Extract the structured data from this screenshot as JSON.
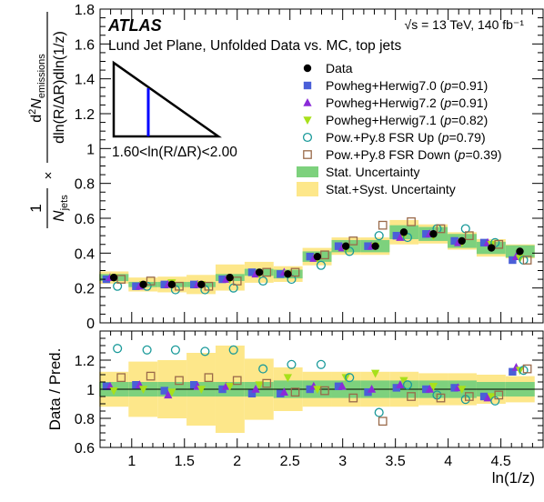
{
  "chart_data": {
    "type": "scatter",
    "experiment": "ATLAS",
    "energy_label": "√s = 13 TeV, 140 fb⁻¹",
    "title": "Lund Jet Plane, Unfolded Data vs. MC, top jets",
    "region_label": "1.60<ln(R/ΔR)<2.00",
    "xlabel": "ln(1/z)",
    "ylabel_top": "1/N_jets × d²N_emissions / dln(R/ΔR)dln(1/z)",
    "ylabel_top_parts": {
      "frac1_num": "1",
      "frac1_den_main": "N",
      "frac1_den_sub": "jets",
      "times": "×",
      "frac2_num_main": "d",
      "frac2_num_sup": "2",
      "frac2_num_N": "N",
      "frac2_num_sub": "emissions",
      "frac2_den": "dln(R/ΔR)dln(1/z)"
    },
    "ylabel_bottom": "Data / Pred.",
    "xlim": [
      0.7,
      4.9
    ],
    "ylim_top": [
      0,
      1.8
    ],
    "ylim_bottom": [
      0.6,
      1.4
    ],
    "xticks": [
      1,
      1.5,
      2,
      2.5,
      3,
      3.5,
      4,
      4.5
    ],
    "xtick_labels": [
      "1",
      "1.5",
      "2",
      "2.5",
      "3",
      "3.5",
      "4",
      "4.5"
    ],
    "yticks_top": [
      0,
      0.2,
      0.4,
      0.6,
      0.8,
      1,
      1.2,
      1.4,
      1.6,
      1.8
    ],
    "ytick_labels_top": [
      "0",
      "0.2",
      "0.4",
      "0.6",
      "0.8",
      "1",
      "1.2",
      "1.4",
      "1.6",
      "1.8"
    ],
    "yticks_bottom": [
      0.6,
      0.8,
      1,
      1.2
    ],
    "ytick_labels_bottom": [
      "0.6",
      "0.8",
      "1",
      "1.2"
    ],
    "bins": [
      {
        "lo": 0.693,
        "hi": 0.97
      },
      {
        "lo": 0.97,
        "hi": 1.245
      },
      {
        "lo": 1.245,
        "hi": 1.52
      },
      {
        "lo": 1.52,
        "hi": 1.795
      },
      {
        "lo": 1.795,
        "hi": 2.07
      },
      {
        "lo": 2.07,
        "hi": 2.345
      },
      {
        "lo": 2.345,
        "hi": 2.62
      },
      {
        "lo": 2.62,
        "hi": 2.895
      },
      {
        "lo": 2.895,
        "hi": 3.17
      },
      {
        "lo": 3.17,
        "hi": 3.445
      },
      {
        "lo": 3.445,
        "hi": 3.72
      },
      {
        "lo": 3.72,
        "hi": 3.995
      },
      {
        "lo": 3.995,
        "hi": 4.27
      },
      {
        "lo": 4.27,
        "hi": 4.545
      },
      {
        "lo": 4.545,
        "hi": 4.82
      }
    ],
    "data": {
      "x": [
        0.83,
        1.11,
        1.38,
        1.66,
        1.93,
        2.21,
        2.48,
        2.76,
        3.03,
        3.31,
        3.58,
        3.86,
        4.13,
        4.41,
        4.68
      ],
      "y": [
        0.26,
        0.22,
        0.22,
        0.22,
        0.26,
        0.29,
        0.28,
        0.38,
        0.44,
        0.44,
        0.52,
        0.51,
        0.47,
        0.43,
        0.41
      ],
      "stat_unc": [
        0.02,
        0.015,
        0.015,
        0.015,
        0.02,
        0.02,
        0.025,
        0.03,
        0.035,
        0.035,
        0.04,
        0.04,
        0.04,
        0.035,
        0.035
      ],
      "total_unc": [
        0.035,
        0.04,
        0.045,
        0.055,
        0.075,
        0.06,
        0.045,
        0.05,
        0.05,
        0.05,
        0.07,
        0.055,
        0.05,
        0.05,
        0.04
      ]
    },
    "ratio_bands": {
      "stat_unc": [
        0.05,
        0.05,
        0.05,
        0.05,
        0.05,
        0.05,
        0.06,
        0.06,
        0.06,
        0.06,
        0.06,
        0.06,
        0.06,
        0.05,
        0.05
      ],
      "total_unc": [
        0.12,
        0.19,
        0.2,
        0.25,
        0.3,
        0.21,
        0.15,
        0.12,
        0.12,
        0.12,
        0.12,
        0.11,
        0.11,
        0.1,
        0.09
      ]
    },
    "series": [
      {
        "name": "Powheg+Herwig7.0",
        "pval": "0.91",
        "color": "#4a5fd8",
        "marker": "square",
        "dx": -0.07,
        "values": [
          0.25,
          0.21,
          0.22,
          0.22,
          0.25,
          0.29,
          0.28,
          0.38,
          0.44,
          0.44,
          0.5,
          0.51,
          0.47,
          0.46,
          0.36
        ],
        "ratio": [
          1.02,
          1.03,
          0.99,
          1.03,
          1.0,
          0.97,
          0.97,
          1.0,
          1.02,
          0.98,
          1.01,
          1.0,
          1.01,
          0.95,
          1.12
        ]
      },
      {
        "name": "Powheg+Herwig7.2",
        "pval": "0.91",
        "color": "#8a2bd8",
        "marker": "triangle-up",
        "dx": -0.035,
        "values": [
          0.26,
          0.21,
          0.22,
          0.22,
          0.25,
          0.28,
          0.29,
          0.37,
          0.43,
          0.44,
          0.49,
          0.51,
          0.46,
          0.46,
          0.38
        ],
        "ratio": [
          1.02,
          1.03,
          0.96,
          1.02,
          1.02,
          1.0,
          0.98,
          1.02,
          1.02,
          1.0,
          1.03,
          1.0,
          1.01,
          0.94,
          1.15
        ]
      },
      {
        "name": "Powheg+Herwig7.1",
        "pval": "0.82",
        "color": "#a8e01a",
        "marker": "triangle-down",
        "dx": 0.0,
        "values": [
          0.26,
          0.22,
          0.23,
          0.22,
          0.25,
          0.28,
          0.28,
          0.37,
          0.42,
          0.44,
          0.5,
          0.5,
          0.46,
          0.45,
          0.37
        ],
        "ratio": [
          0.99,
          1.0,
          0.98,
          1.0,
          1.02,
          1.03,
          1.08,
          1.0,
          1.08,
          1.11,
          1.06,
          1.02,
          1.0,
          0.95,
          1.13
        ]
      },
      {
        "name": "Pow.+Py.8 FSR Up",
        "pval": "0.79",
        "color": "#1a9a9a",
        "marker": "circle-open",
        "dx": 0.035,
        "values": [
          0.21,
          0.21,
          0.19,
          0.19,
          0.2,
          0.24,
          0.25,
          0.33,
          0.41,
          0.5,
          0.49,
          0.54,
          0.54,
          0.46,
          0.36
        ],
        "ratio": [
          1.28,
          1.27,
          1.27,
          1.26,
          1.27,
          1.14,
          1.17,
          1.17,
          1.08,
          0.84,
          1.03,
          0.96,
          0.93,
          0.92,
          1.13
        ]
      },
      {
        "name": "Pow.+Py.8 FSR Down",
        "pval": "0.39",
        "color": "#9a6a4a",
        "marker": "square-open",
        "dx": 0.07,
        "values": [
          0.25,
          0.24,
          0.21,
          0.21,
          0.24,
          0.29,
          0.29,
          0.39,
          0.47,
          0.56,
          0.58,
          0.54,
          0.5,
          0.45,
          0.36
        ],
        "ratio": [
          1.08,
          1.09,
          1.06,
          1.08,
          1.06,
          1.04,
          0.98,
          0.99,
          0.94,
          0.78,
          0.95,
          0.94,
          0.95,
          0.96,
          1.14
        ]
      }
    ],
    "legend": {
      "placement": "top-right",
      "data_label": "Data",
      "stat_label": "Stat. Uncertainty",
      "total_label": "Stat.+Syst. Uncertainty",
      "p_open": "(",
      "p_symbol": "p",
      "p_eq": "=",
      "p_close": ")"
    },
    "colors": {
      "data": "#000000",
      "stat_band": "#7dd17d",
      "total_band": "#fde78a",
      "triangle_line": "#0000ff"
    }
  }
}
